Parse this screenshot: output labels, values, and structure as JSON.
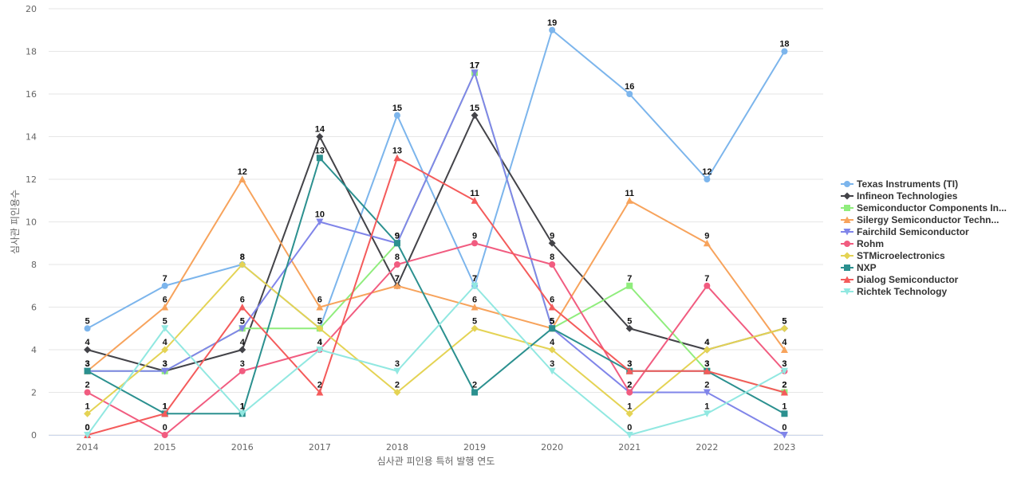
{
  "chart_data": {
    "type": "line",
    "title": "",
    "xlabel": "심사관 피인용 특허 발행 연도",
    "ylabel": "심사관 피인용수",
    "x": [
      "2014",
      "2015",
      "2016",
      "2017",
      "2018",
      "2019",
      "2020",
      "2021",
      "2022",
      "2023"
    ],
    "yticks": [
      "0",
      "2",
      "4",
      "6",
      "8",
      "10",
      "12",
      "14",
      "16",
      "18",
      "20"
    ],
    "ylim": [
      0,
      20
    ],
    "grid": "horizontal",
    "legend_position": "right",
    "series": [
      {
        "name": "Texas Instruments (TI)",
        "color": "#7cb5ec",
        "marker": "circle",
        "values": [
          5,
          7,
          8,
          5,
          15,
          7,
          19,
          16,
          12,
          18
        ]
      },
      {
        "name": "Infineon Technologies",
        "color": "#434348",
        "marker": "diamond",
        "values": [
          4,
          3,
          4,
          14,
          7,
          15,
          9,
          5,
          4,
          5
        ]
      },
      {
        "name": "Semiconductor Components In...",
        "color": "#90ed7d",
        "marker": "square",
        "values": [
          3,
          3,
          5,
          5,
          9,
          17,
          5,
          7,
          3,
          2
        ]
      },
      {
        "name": "Silergy Semiconductor Techn...",
        "color": "#f7a35c",
        "marker": "triangle",
        "values": [
          3,
          6,
          12,
          6,
          7,
          6,
          5,
          11,
          9,
          4
        ]
      },
      {
        "name": "Fairchild Semiconductor",
        "color": "#8085e9",
        "marker": "triangle-down",
        "values": [
          3,
          3,
          5,
          10,
          9,
          17,
          5,
          2,
          2,
          0
        ]
      },
      {
        "name": "Rohm",
        "color": "#f15c80",
        "marker": "circle",
        "values": [
          2,
          0,
          3,
          4,
          8,
          9,
          8,
          2,
          7,
          3
        ]
      },
      {
        "name": "STMicroelectronics",
        "color": "#e4d354",
        "marker": "diamond",
        "values": [
          1,
          4,
          8,
          5,
          2,
          5,
          4,
          1,
          4,
          5
        ]
      },
      {
        "name": "NXP",
        "color": "#2b908f",
        "marker": "square",
        "values": [
          3,
          1,
          1,
          13,
          9,
          2,
          5,
          3,
          3,
          1
        ]
      },
      {
        "name": "Dialog Semiconductor",
        "color": "#f45b5b",
        "marker": "triangle",
        "values": [
          0,
          1,
          6,
          2,
          13,
          11,
          6,
          3,
          3,
          2
        ]
      },
      {
        "name": "Richtek Technology",
        "color": "#91e8e1",
        "marker": "triangle-down",
        "values": [
          0,
          5,
          1,
          4,
          3,
          7,
          3,
          0,
          1,
          3
        ]
      }
    ]
  }
}
